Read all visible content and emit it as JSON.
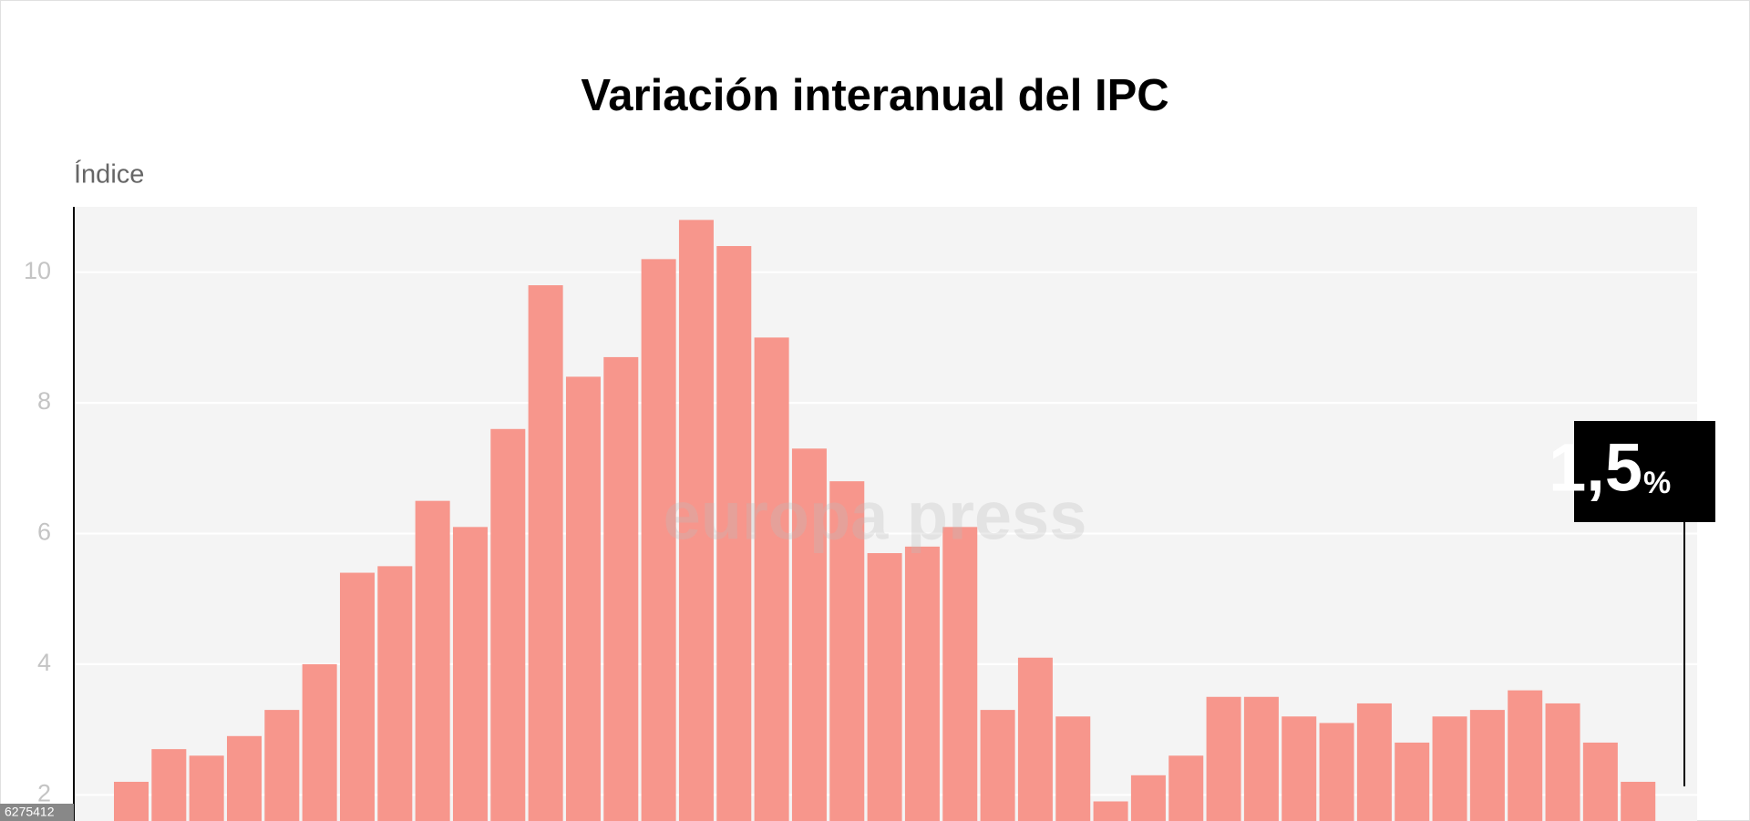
{
  "chart_data": {
    "type": "bar",
    "title": "Variación interanual del IPC",
    "y_label": "Índice",
    "categories": [
      null,
      null,
      null,
      null,
      null,
      null,
      null,
      null,
      null,
      null,
      null,
      null,
      null,
      null,
      null,
      null,
      null,
      null,
      null,
      null,
      null,
      null,
      null,
      null,
      null,
      null,
      null,
      null,
      null,
      null,
      null,
      null,
      null,
      null,
      null,
      null,
      null,
      null,
      null,
      null,
      null
    ],
    "values": [
      2.2,
      2.7,
      2.6,
      2.9,
      3.3,
      4.0,
      5.4,
      5.5,
      6.5,
      6.1,
      7.6,
      9.8,
      8.4,
      8.7,
      10.2,
      10.8,
      10.4,
      9.0,
      7.3,
      6.8,
      5.7,
      5.8,
      6.1,
      3.3,
      4.1,
      3.2,
      1.9,
      2.3,
      2.6,
      3.5,
      3.5,
      3.2,
      3.1,
      3.4,
      2.8,
      3.2,
      3.3,
      3.6,
      3.4,
      2.8,
      2.2
    ],
    "color": "#f7968c",
    "ylim": [
      1.6,
      11
    ],
    "yticks": [
      2,
      4,
      6,
      8,
      10
    ],
    "grid": true,
    "annotation": {
      "value": "1,5",
      "unit": "%"
    },
    "watermark": "europa press",
    "image_id": "6275412"
  }
}
